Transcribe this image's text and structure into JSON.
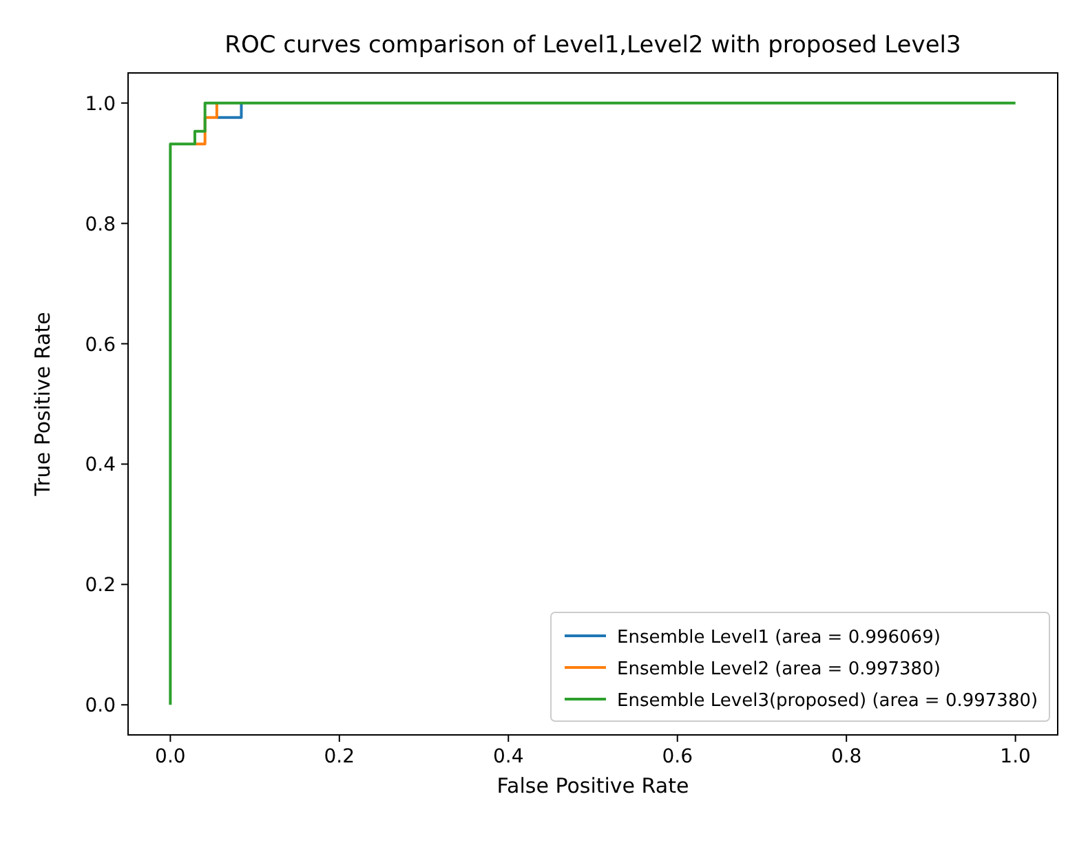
{
  "chart_data": {
    "type": "step",
    "title": "ROC curves comparison of Level1,Level2 with proposed Level3",
    "xlabel": "False Positive Rate",
    "ylabel": "True Positive Rate",
    "xlim": [
      -0.05,
      1.05
    ],
    "ylim": [
      -0.05,
      1.05
    ],
    "xticks": [
      {
        "value": 0,
        "label": "0.0"
      },
      {
        "value": 0.2,
        "label": "0.2"
      },
      {
        "value": 0.4,
        "label": "0.4"
      },
      {
        "value": 0.6,
        "label": "0.6"
      },
      {
        "value": 0.8,
        "label": "0.8"
      },
      {
        "value": 1,
        "label": "1.0"
      }
    ],
    "yticks": [
      {
        "value": 0,
        "label": "0.0"
      },
      {
        "value": 0.2,
        "label": "0.2"
      },
      {
        "value": 0.4,
        "label": "0.4"
      },
      {
        "value": 0.6,
        "label": "0.6"
      },
      {
        "value": 0.8,
        "label": "0.8"
      },
      {
        "value": 1,
        "label": "1.0"
      }
    ],
    "legend": "bottom right",
    "grid": false,
    "series": [
      {
        "name": "Ensemble Level1 (area = 0.996069)",
        "color": "#1f77b4",
        "x": [
          0.055,
          0.084,
          0.084
        ],
        "values": [
          0.976,
          0.976,
          1
        ]
      },
      {
        "name": "Ensemble Level2 (area = 0.997380)",
        "color": "#ff7f0e",
        "x": [
          0.029,
          0.041,
          0.041,
          0.055,
          0.055
        ],
        "values": [
          0.932,
          0.932,
          0.976,
          0.976,
          1
        ]
      },
      {
        "name": "Ensemble Level3(proposed) (area = 0.997380)",
        "color": "#2ca02c",
        "x": [
          0,
          0,
          0.029,
          0.029,
          0.041,
          0.041,
          1
        ],
        "values": [
          0,
          0.932,
          0.932,
          0.953,
          0.953,
          1,
          1
        ]
      }
    ]
  }
}
